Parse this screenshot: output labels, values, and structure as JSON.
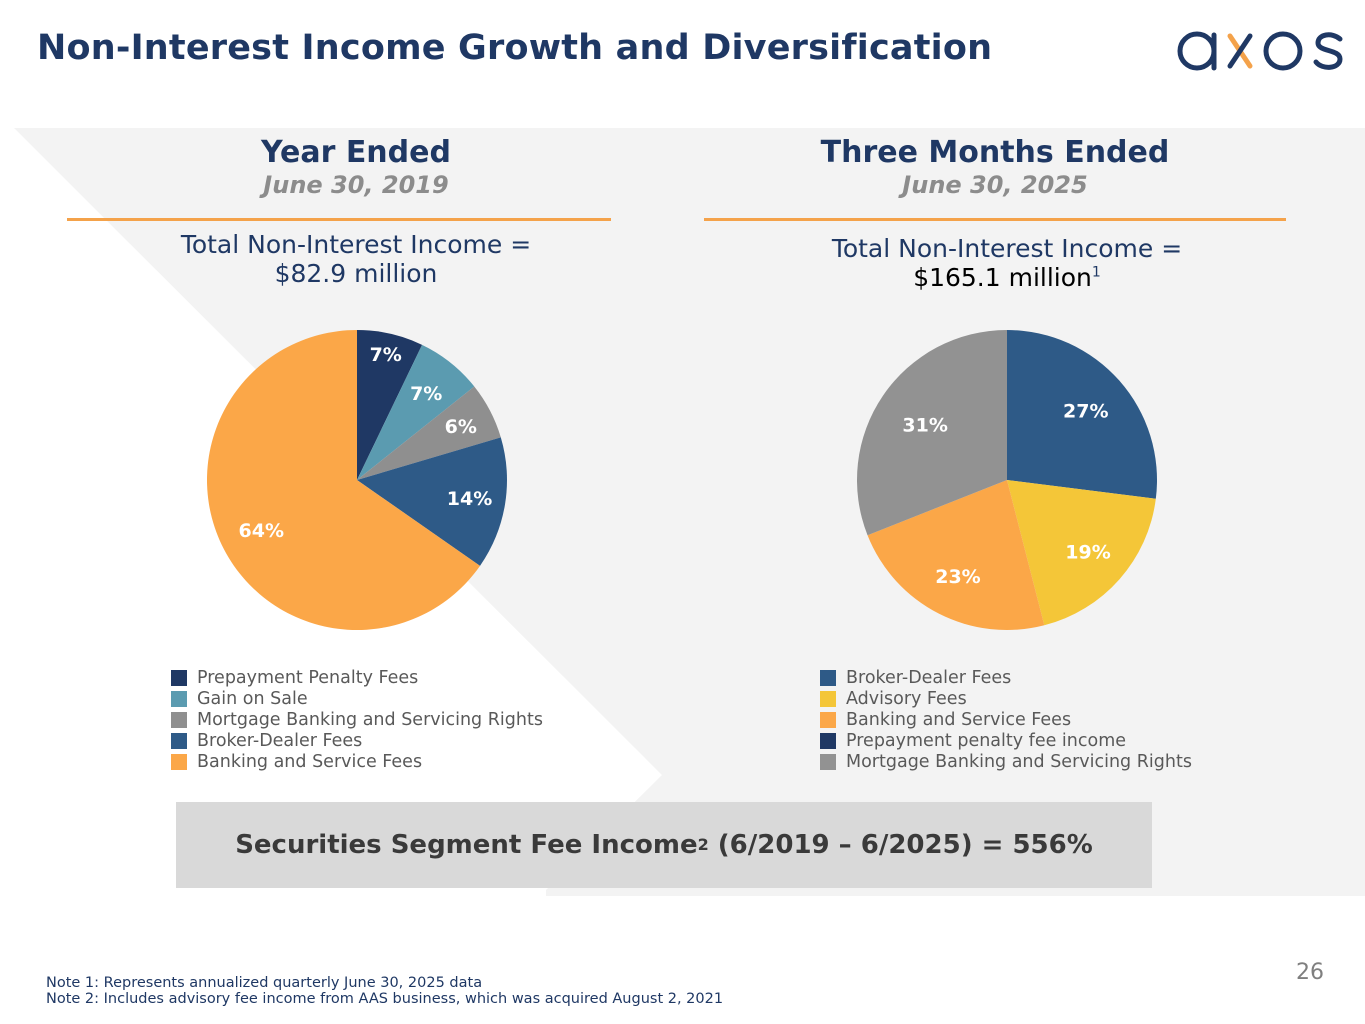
{
  "page": {
    "title": "Non-Interest Income Growth and Diversification",
    "logo_text": "axos",
    "page_number": "26"
  },
  "colors": {
    "navy": "#1f3864",
    "orange_accent": "#f4a24a",
    "gray_text": "#8c8c8c",
    "panel_bg": "#f2f2f2",
    "summary_bg": "#d9d9d9"
  },
  "left_panel": {
    "heading": "Year Ended",
    "subheading": "June 30, 2019",
    "total_line1": "Total Non-Interest Income =",
    "total_line2": "$82.9 million"
  },
  "right_panel": {
    "heading": "Three Months Ended",
    "subheading": "June 30, 2025",
    "total_line1": "Total Non-Interest Income =",
    "total_line2": "$165.1 million",
    "total_footnote": "1"
  },
  "chart_data": [
    {
      "type": "pie",
      "title": "",
      "categories": [
        "Prepayment Penalty Fees",
        "Gain on Sale",
        "Mortgage Banking and Servicing Rights",
        "Broker-Dealer Fees",
        "Banking and Service Fees"
      ],
      "values": [
        7,
        7,
        6,
        14,
        64
      ],
      "labels": [
        "7%",
        "7%",
        "6%",
        "14%",
        "64%"
      ],
      "colors": [
        "#1f3864",
        "#5b9bb0",
        "#8f8f8f",
        "#2e5a87",
        "#fba748"
      ],
      "legend_placement": "bottom"
    },
    {
      "type": "pie",
      "title": "",
      "categories": [
        "Broker-Dealer Fees",
        "Advisory Fees",
        "Banking and Service Fees",
        "Prepayment penalty fee income",
        "Mortgage Banking and Servicing Rights"
      ],
      "values": [
        27,
        19,
        23,
        0,
        31
      ],
      "labels": [
        "27%",
        "19%",
        "23%",
        "",
        "31%"
      ],
      "colors": [
        "#2e5a87",
        "#f4c638",
        "#fba748",
        "#1f3864",
        "#929292"
      ],
      "legend_placement": "bottom"
    }
  ],
  "summary": {
    "text_before": "Securities Segment Fee Income",
    "footnote": "2",
    "text_after": " (6/2019 – 6/2025) = 556%"
  },
  "notes": [
    "Note 1: Represents annualized quarterly June 30, 2025 data",
    "Note 2: Includes advisory fee income from AAS business, which was acquired August 2, 2021"
  ]
}
